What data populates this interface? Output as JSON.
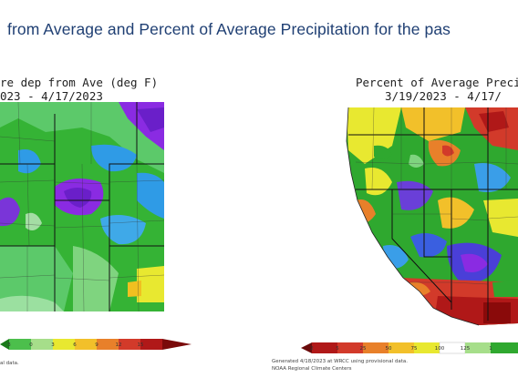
{
  "header": {
    "title": "from Average and Percent of Average Precipitation for the pas"
  },
  "left_map": {
    "title": "re dep from Ave (deg F)",
    "dates": "023 - 4/17/2023",
    "scale_ticks": [
      "3",
      "0",
      "3",
      "6",
      "9",
      "12",
      "15"
    ],
    "footnote": "al data."
  },
  "right_map": {
    "title": "Percent of Average Precipi",
    "dates": "3/19/2023 - 4/17/",
    "scale_ticks": [
      "2",
      "5",
      "25",
      "50",
      "75",
      "100",
      "125",
      "1"
    ],
    "credit_line1": "Generated 4/18/2023 at WRCC using provisional data.",
    "credit_line2": "NOAA Regional Climate Centers"
  }
}
